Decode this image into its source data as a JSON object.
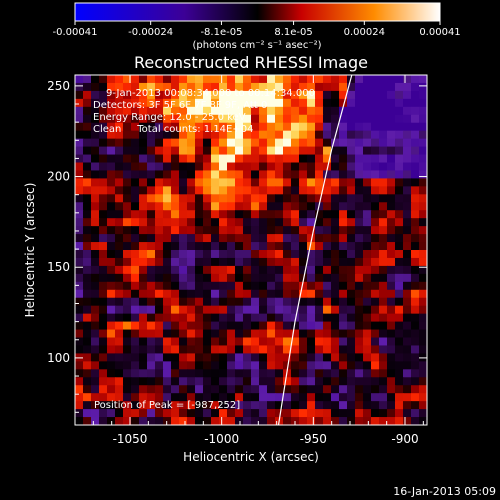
{
  "colorbar": {
    "tick_labels": [
      "-0.00041",
      "-0.00024",
      "-8.1e-05",
      "8.1e-05",
      "0.00024",
      "0.00041"
    ],
    "tick_values": [
      -0.00041,
      -0.00024,
      -8.1e-05,
      8.1e-05,
      0.00024,
      0.00041
    ],
    "range": [
      -0.00041,
      0.00041
    ],
    "unit_label": "(photons cm⁻² s⁻¹ asec⁻²)",
    "colors": [
      "#0000ff",
      "#3a0090",
      "#4b0082",
      "#000000",
      "#ff0000",
      "#ff8c00",
      "#ffffff"
    ]
  },
  "plot": {
    "title": "Reconstructed RHESSI Image",
    "info_lines": [
      "9-Jan-2013 00:08:34.000 to 00:14:34.000",
      "Detectors: 3F 5F 6F 7F 8F 9F, Att 0",
      "Energy Range: 12.0 - 25.0 keV",
      "Clean     Total counts: 1.14E+04"
    ],
    "peak_label": "Position of Peak = [-987,252]",
    "footer_timestamp": "16-Jan-2013 05:09"
  },
  "chart_data": {
    "type": "heatmap",
    "title": "Reconstructed RHESSI Image",
    "xlabel": "Heliocentric X (arcsec)",
    "ylabel": "Heliocentric Y (arcsec)",
    "xlim": [
      -1080,
      -888
    ],
    "ylim": [
      63,
      256
    ],
    "x_ticks": [
      -1050,
      -1000,
      -950,
      -900
    ],
    "x_tick_labels": [
      "-1050",
      "-1000",
      "-950",
      "-900"
    ],
    "y_ticks": [
      100,
      150,
      200,
      250
    ],
    "y_tick_labels": [
      "100",
      "150",
      "200",
      "250"
    ],
    "color_range": [
      -0.00041,
      0.00041
    ],
    "peak": {
      "x": -987,
      "y": 252
    },
    "limb_curve": [
      [
        -969,
        63
      ],
      [
        -960,
        120
      ],
      [
        -950,
        170
      ],
      [
        -940,
        215
      ],
      [
        -929,
        256
      ]
    ]
  }
}
